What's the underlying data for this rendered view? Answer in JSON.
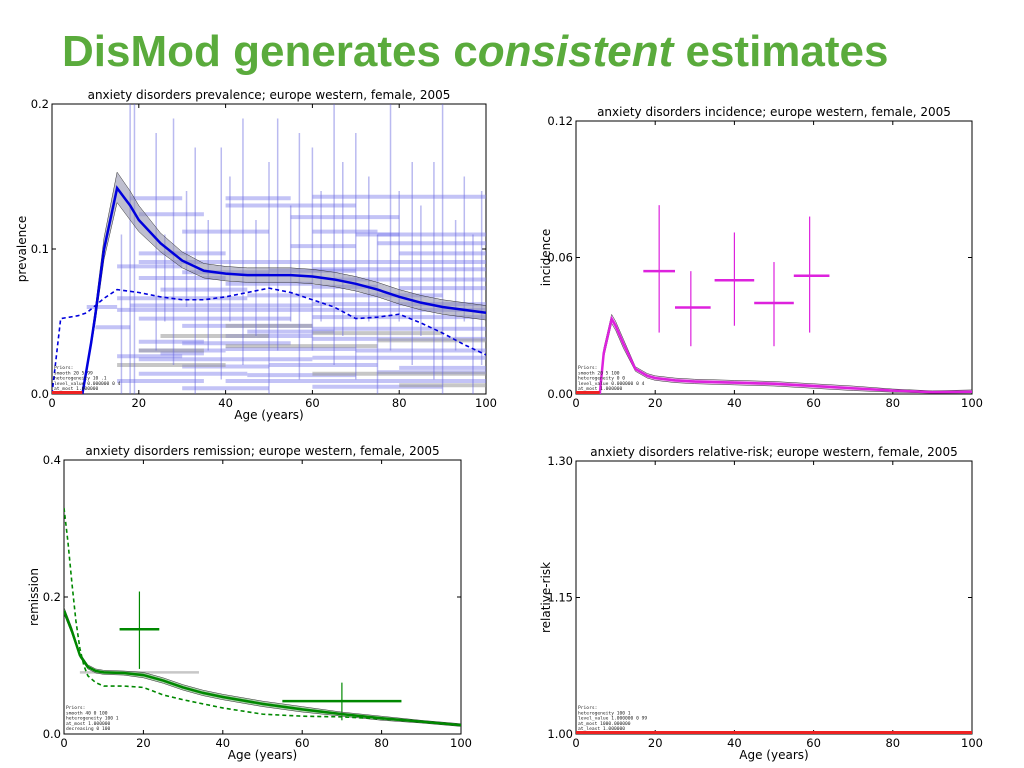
{
  "slide": {
    "title_pre": "DisMod generates c",
    "title_em": "onsistent",
    "title_post": " estimates"
  },
  "chart_data": [
    {
      "type": "line",
      "title": "anxiety disorders prevalence; europe western, female, 2005",
      "xlabel": "Age (years)",
      "ylabel": "prevalence",
      "xlim": [
        0,
        100
      ],
      "ylim": [
        0,
        0.2
      ],
      "xticks": [
        0,
        20,
        40,
        60,
        80,
        100
      ],
      "yticks": [
        0.0,
        0.1,
        0.2
      ],
      "ytick_labels": [
        "0.0",
        "0.1",
        "0.2"
      ],
      "color": "#0000dd",
      "band_color": "#8a8aa8",
      "zero_segment": [
        0,
        7
      ],
      "prior_text": [
        "Priors:",
        "smooth 20 5 99",
        "heterogeneity 10 .1",
        "level_value 0.000000 0 4",
        "at_most 1.000000"
      ],
      "mean_curve": {
        "x": [
          0,
          5,
          7,
          9,
          10,
          12,
          15,
          18,
          20,
          25,
          30,
          35,
          40,
          45,
          50,
          55,
          60,
          65,
          70,
          75,
          80,
          85,
          90,
          95,
          100
        ],
        "y": [
          0,
          0,
          0,
          0.035,
          0.055,
          0.1,
          0.142,
          0.13,
          0.12,
          0.104,
          0.092,
          0.085,
          0.083,
          0.082,
          0.082,
          0.082,
          0.081,
          0.079,
          0.076,
          0.072,
          0.067,
          0.063,
          0.06,
          0.058,
          0.056
        ],
        "lower": [
          0,
          0,
          0,
          0.032,
          0.05,
          0.093,
          0.132,
          0.12,
          0.112,
          0.098,
          0.087,
          0.08,
          0.078,
          0.077,
          0.077,
          0.077,
          0.076,
          0.074,
          0.071,
          0.067,
          0.062,
          0.058,
          0.055,
          0.053,
          0.051
        ],
        "upper": [
          0,
          0,
          0,
          0.038,
          0.06,
          0.108,
          0.153,
          0.14,
          0.13,
          0.111,
          0.098,
          0.09,
          0.088,
          0.087,
          0.087,
          0.087,
          0.086,
          0.084,
          0.081,
          0.077,
          0.072,
          0.068,
          0.065,
          0.063,
          0.061
        ]
      },
      "dashed_curve": {
        "x": [
          0,
          2,
          4,
          6,
          8,
          12,
          15,
          20,
          25,
          30,
          35,
          40,
          45,
          50,
          55,
          60,
          65,
          70,
          75,
          80,
          85,
          90,
          95,
          100
        ],
        "y": [
          0,
          0.052,
          0.053,
          0.054,
          0.056,
          0.066,
          0.072,
          0.07,
          0.067,
          0.065,
          0.065,
          0.067,
          0.07,
          0.073,
          0.07,
          0.065,
          0.06,
          0.052,
          0.053,
          0.055,
          0.049,
          0.042,
          0.034,
          0.027
        ]
      },
      "horizontal_segments": [
        {
          "x0": 18,
          "x1": 30,
          "y": 0.135
        },
        {
          "x0": 40,
          "x1": 55,
          "y": 0.135
        },
        {
          "x0": 60,
          "x1": 100,
          "y": 0.136
        },
        {
          "x0": 20,
          "x1": 35,
          "y": 0.124
        },
        {
          "x0": 55,
          "x1": 80,
          "y": 0.122
        },
        {
          "x0": 40,
          "x1": 70,
          "y": 0.13
        },
        {
          "x0": 30,
          "x1": 50,
          "y": 0.112
        },
        {
          "x0": 60,
          "x1": 75,
          "y": 0.112
        },
        {
          "x0": 75,
          "x1": 100,
          "y": 0.104
        },
        {
          "x0": 75,
          "x1": 100,
          "y": 0.11
        },
        {
          "x0": 55,
          "x1": 70,
          "y": 0.102
        },
        {
          "x0": 70,
          "x1": 80,
          "y": 0.11
        },
        {
          "x0": 80,
          "x1": 100,
          "y": 0.097
        },
        {
          "x0": 20,
          "x1": 40,
          "y": 0.097
        },
        {
          "x0": 20,
          "x1": 100,
          "y": 0.091
        },
        {
          "x0": 15,
          "x1": 30,
          "y": 0.088
        },
        {
          "x0": 30,
          "x1": 50,
          "y": 0.084
        },
        {
          "x0": 50,
          "x1": 70,
          "y": 0.085
        },
        {
          "x0": 60,
          "x1": 100,
          "y": 0.086
        },
        {
          "x0": 20,
          "x1": 40,
          "y": 0.08
        },
        {
          "x0": 65,
          "x1": 100,
          "y": 0.079
        },
        {
          "x0": 40,
          "x1": 60,
          "y": 0.076
        },
        {
          "x0": 60,
          "x1": 75,
          "y": 0.074
        },
        {
          "x0": 80,
          "x1": 100,
          "y": 0.073
        },
        {
          "x0": 25,
          "x1": 45,
          "y": 0.072
        },
        {
          "x0": 15,
          "x1": 45,
          "y": 0.066
        },
        {
          "x0": 45,
          "x1": 70,
          "y": 0.068
        },
        {
          "x0": 70,
          "x1": 90,
          "y": 0.068
        },
        {
          "x0": 18,
          "x1": 60,
          "y": 0.061
        },
        {
          "x0": 60,
          "x1": 100,
          "y": 0.062
        },
        {
          "x0": 15,
          "x1": 100,
          "y": 0.058
        },
        {
          "x0": 20,
          "x1": 55,
          "y": 0.052
        },
        {
          "x0": 60,
          "x1": 100,
          "y": 0.053
        },
        {
          "x0": 30,
          "x1": 60,
          "y": 0.047
        },
        {
          "x0": 45,
          "x1": 65,
          "y": 0.043
        },
        {
          "x0": 60,
          "x1": 100,
          "y": 0.045
        },
        {
          "x0": 40,
          "x1": 60,
          "y": 0.04
        },
        {
          "x0": 20,
          "x1": 35,
          "y": 0.036
        },
        {
          "x0": 30,
          "x1": 55,
          "y": 0.035
        },
        {
          "x0": 60,
          "x1": 100,
          "y": 0.038
        },
        {
          "x0": 20,
          "x1": 40,
          "y": 0.03
        },
        {
          "x0": 40,
          "x1": 70,
          "y": 0.031
        },
        {
          "x0": 70,
          "x1": 100,
          "y": 0.03
        },
        {
          "x0": 15,
          "x1": 30,
          "y": 0.026
        },
        {
          "x0": 20,
          "x1": 60,
          "y": 0.024
        },
        {
          "x0": 60,
          "x1": 100,
          "y": 0.025
        },
        {
          "x0": 30,
          "x1": 50,
          "y": 0.019
        },
        {
          "x0": 50,
          "x1": 75,
          "y": 0.02
        },
        {
          "x0": 80,
          "x1": 100,
          "y": 0.018
        },
        {
          "x0": 20,
          "x1": 45,
          "y": 0.014
        },
        {
          "x0": 45,
          "x1": 70,
          "y": 0.013
        },
        {
          "x0": 75,
          "x1": 100,
          "y": 0.015
        },
        {
          "x0": 15,
          "x1": 35,
          "y": 0.009
        },
        {
          "x0": 40,
          "x1": 100,
          "y": 0.009
        },
        {
          "x0": 30,
          "x1": 50,
          "y": 0.004
        },
        {
          "x0": 60,
          "x1": 90,
          "y": 0.005
        },
        {
          "x0": 25,
          "x1": 35,
          "y": 0.028
        },
        {
          "x0": 8,
          "x1": 15,
          "y": 0.06
        },
        {
          "x0": 10,
          "x1": 18,
          "y": 0.046
        }
      ],
      "gray_segments": [
        {
          "x0": 25,
          "x1": 50,
          "y": 0.04
        },
        {
          "x0": 60,
          "x1": 90,
          "y": 0.042
        },
        {
          "x0": 40,
          "x1": 75,
          "y": 0.033
        },
        {
          "x0": 75,
          "x1": 100,
          "y": 0.037
        },
        {
          "x0": 15,
          "x1": 40,
          "y": 0.02
        },
        {
          "x0": 60,
          "x1": 100,
          "y": 0.014
        },
        {
          "x0": 80,
          "x1": 100,
          "y": 0.006
        },
        {
          "x0": 40,
          "x1": 60,
          "y": 0.047
        },
        {
          "x0": 20,
          "x1": 35,
          "y": 0.03
        }
      ],
      "vertical_segments": [
        {
          "x": 16,
          "y0": 0,
          "y1": 0.11
        },
        {
          "x": 18,
          "y0": 0,
          "y1": 0.2
        },
        {
          "x": 19,
          "y0": 0,
          "y1": 0.2
        },
        {
          "x": 24,
          "y0": 0.03,
          "y1": 0.18
        },
        {
          "x": 26,
          "y0": 0.05,
          "y1": 0.11
        },
        {
          "x": 28,
          "y0": 0.02,
          "y1": 0.19
        },
        {
          "x": 31,
          "y0": 0.06,
          "y1": 0.14
        },
        {
          "x": 33,
          "y0": 0,
          "y1": 0.17
        },
        {
          "x": 36,
          "y0": 0.03,
          "y1": 0.12
        },
        {
          "x": 39,
          "y0": 0.01,
          "y1": 0.17
        },
        {
          "x": 41,
          "y0": 0.05,
          "y1": 0.15
        },
        {
          "x": 44,
          "y0": 0.02,
          "y1": 0.19
        },
        {
          "x": 47,
          "y0": 0.04,
          "y1": 0.12
        },
        {
          "x": 50,
          "y0": 0,
          "y1": 0.16
        },
        {
          "x": 52,
          "y0": 0.03,
          "y1": 0.19
        },
        {
          "x": 55,
          "y0": 0.05,
          "y1": 0.13
        },
        {
          "x": 57,
          "y0": 0.01,
          "y1": 0.18
        },
        {
          "x": 60,
          "y0": 0.03,
          "y1": 0.17
        },
        {
          "x": 62,
          "y0": 0.05,
          "y1": 0.14
        },
        {
          "x": 65,
          "y0": 0.02,
          "y1": 0.2
        },
        {
          "x": 67,
          "y0": 0.04,
          "y1": 0.16
        },
        {
          "x": 70,
          "y0": 0.01,
          "y1": 0.18
        },
        {
          "x": 73,
          "y0": 0.05,
          "y1": 0.15
        },
        {
          "x": 75,
          "y0": 0,
          "y1": 0.11
        },
        {
          "x": 78,
          "y0": 0.03,
          "y1": 0.2
        },
        {
          "x": 80,
          "y0": 0.05,
          "y1": 0.14
        },
        {
          "x": 83,
          "y0": 0.02,
          "y1": 0.16
        },
        {
          "x": 85,
          "y0": 0.04,
          "y1": 0.13
        },
        {
          "x": 88,
          "y0": 0.01,
          "y1": 0.16
        },
        {
          "x": 90,
          "y0": 0,
          "y1": 0.2
        },
        {
          "x": 93,
          "y0": 0.03,
          "y1": 0.12
        },
        {
          "x": 95,
          "y0": 0.05,
          "y1": 0.15
        },
        {
          "x": 97,
          "y0": 0,
          "y1": 0.11
        },
        {
          "x": 99,
          "y0": 0.02,
          "y1": 0.14
        }
      ]
    },
    {
      "type": "line",
      "title": "anxiety disorders incidence; europe western, female, 2005",
      "xlabel": "",
      "ylabel": "incidence",
      "xlim": [
        0,
        100
      ],
      "ylim": [
        0,
        0.12
      ],
      "xticks": [
        0,
        20,
        40,
        60,
        80,
        100
      ],
      "yticks": [
        0.0,
        0.06,
        0.12
      ],
      "ytick_labels": [
        "0.00",
        "0.06",
        "0.12"
      ],
      "color": "#dd22dd",
      "band_color": "#e080e0",
      "zero_segment": [
        0,
        6
      ],
      "prior_text": [
        "Priors:",
        "smooth 20 5 100",
        "heterogeneity 0 0",
        "level_value 0.000000 0 4",
        "at_most 1.000000"
      ],
      "mean_curve": {
        "x": [
          0,
          5,
          6,
          7,
          9,
          10,
          12,
          15,
          18,
          20,
          25,
          30,
          40,
          50,
          60,
          70,
          80,
          90,
          100
        ],
        "y": [
          0,
          0,
          0,
          0.018,
          0.033,
          0.03,
          0.022,
          0.011,
          0.008,
          0.007,
          0.006,
          0.0055,
          0.005,
          0.0045,
          0.0035,
          0.0025,
          0.0015,
          0.0008,
          0.001
        ],
        "lower": [
          0,
          0,
          0,
          0.016,
          0.031,
          0.028,
          0.02,
          0.01,
          0.007,
          0.006,
          0.005,
          0.0045,
          0.004,
          0.0035,
          0.0025,
          0.0015,
          0.0008,
          0.0004,
          0.0005
        ],
        "upper": [
          0,
          0,
          0,
          0.02,
          0.035,
          0.032,
          0.024,
          0.012,
          0.009,
          0.008,
          0.007,
          0.0065,
          0.006,
          0.0055,
          0.0045,
          0.0035,
          0.0022,
          0.0014,
          0.0018
        ]
      },
      "crosses": [
        {
          "x": 21,
          "xerr": [
            17,
            25
          ],
          "y": 0.054,
          "yerr": [
            0.027,
            0.083
          ]
        },
        {
          "x": 29,
          "xerr": [
            25,
            34
          ],
          "y": 0.038,
          "yerr": [
            0.021,
            0.054
          ]
        },
        {
          "x": 40,
          "xerr": [
            35,
            45
          ],
          "y": 0.05,
          "yerr": [
            0.03,
            0.071
          ]
        },
        {
          "x": 50,
          "xerr": [
            45,
            55
          ],
          "y": 0.04,
          "yerr": [
            0.021,
            0.058
          ]
        },
        {
          "x": 59,
          "xerr": [
            55,
            64
          ],
          "y": 0.052,
          "yerr": [
            0.027,
            0.078
          ]
        }
      ]
    },
    {
      "type": "line",
      "title": "anxiety disorders remission; europe western, female, 2005",
      "xlabel": "Age (years)",
      "ylabel": "remission",
      "xlim": [
        0,
        100
      ],
      "ylim": [
        0,
        0.4
      ],
      "xticks": [
        0,
        20,
        40,
        60,
        80,
        100
      ],
      "yticks": [
        0.0,
        0.2,
        0.4
      ],
      "ytick_labels": [
        "0.0",
        "0.2",
        "0.4"
      ],
      "color": "#008800",
      "band_color": "#66aa66",
      "prior_text": [
        "Priors:",
        "smooth 40 0 100",
        "heterogeneity 100 1",
        "at_most 1.000000",
        "decreasing 0 100"
      ],
      "mean_curve": {
        "x": [
          0,
          2,
          4,
          6,
          8,
          10,
          15,
          20,
          25,
          30,
          35,
          40,
          50,
          60,
          70,
          80,
          90,
          100
        ],
        "y": [
          0.18,
          0.15,
          0.115,
          0.098,
          0.092,
          0.09,
          0.089,
          0.086,
          0.078,
          0.068,
          0.06,
          0.054,
          0.044,
          0.036,
          0.029,
          0.023,
          0.018,
          0.013
        ],
        "lower": [
          0.175,
          0.146,
          0.112,
          0.095,
          0.089,
          0.087,
          0.086,
          0.082,
          0.074,
          0.064,
          0.056,
          0.05,
          0.04,
          0.032,
          0.026,
          0.02,
          0.016,
          0.011
        ],
        "upper": [
          0.185,
          0.155,
          0.118,
          0.101,
          0.095,
          0.093,
          0.092,
          0.09,
          0.082,
          0.072,
          0.064,
          0.058,
          0.048,
          0.04,
          0.032,
          0.026,
          0.02,
          0.015
        ]
      },
      "dashed_curve": {
        "x": [
          0,
          1,
          2,
          3,
          4,
          5,
          6,
          8,
          10,
          15,
          20,
          25,
          30,
          40,
          50,
          60,
          70,
          80,
          90,
          100
        ],
        "y": [
          0.33,
          0.28,
          0.22,
          0.165,
          0.125,
          0.1,
          0.085,
          0.075,
          0.07,
          0.07,
          0.068,
          0.057,
          0.05,
          0.038,
          0.029,
          0.026,
          0.025,
          0.022,
          0.018,
          0.013
        ]
      },
      "crosses": [
        {
          "x": 19,
          "xerr": [
            14,
            24
          ],
          "y": 0.153,
          "yerr": [
            0.095,
            0.208
          ]
        },
        {
          "x": 70,
          "xerr": [
            55,
            85
          ],
          "y": 0.048,
          "yerr": [
            0.02,
            0.075
          ]
        }
      ],
      "gray_segments": [
        {
          "x0": 4,
          "x1": 34,
          "y": 0.09
        }
      ]
    },
    {
      "type": "line",
      "title": "anxiety disorders relative-risk; europe western, female, 2005",
      "xlabel": "Age (years)",
      "ylabel": "relative-risk",
      "xlim": [
        0,
        100
      ],
      "ylim": [
        1.0,
        1.3
      ],
      "xticks": [
        0,
        20,
        40,
        60,
        80,
        100
      ],
      "yticks": [
        1.0,
        1.15,
        1.3
      ],
      "ytick_labels": [
        "1.00",
        "1.15",
        "1.30"
      ],
      "color": "#dd0000",
      "zero_segment": [
        0,
        100
      ],
      "prior_text": [
        "Priors:",
        "heterogeneity 100 1",
        "level_value 1.000000 0 99",
        "at_most 1000.000000",
        "at_least 1.000000"
      ]
    }
  ]
}
